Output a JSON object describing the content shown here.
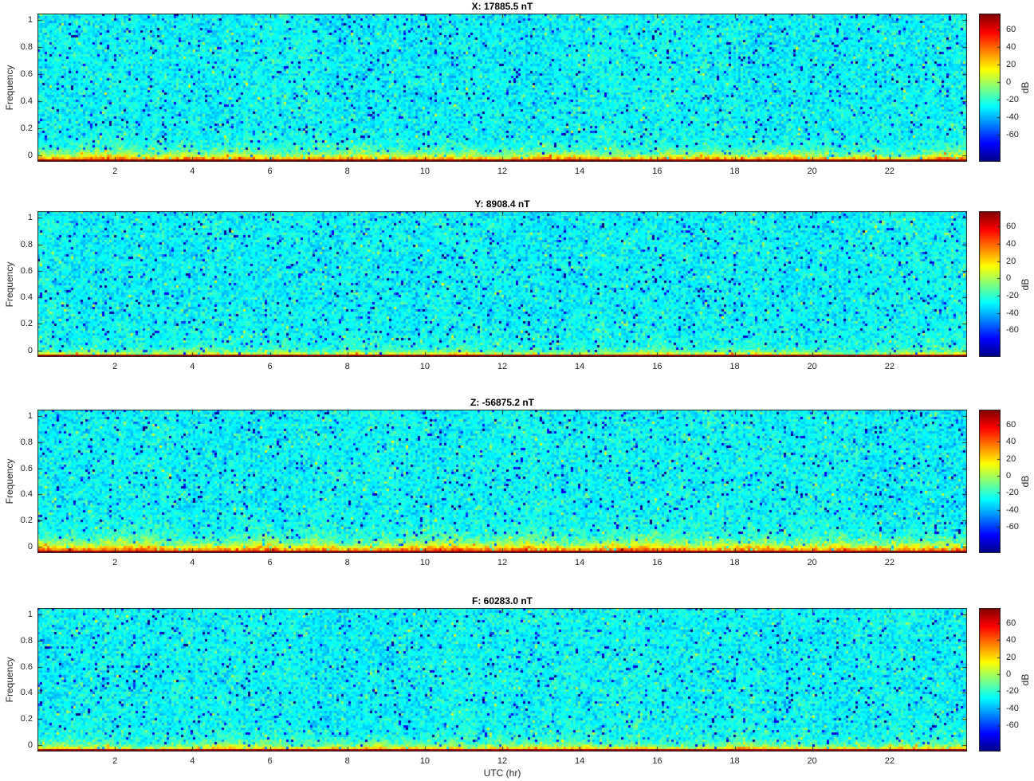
{
  "figure": {
    "panels": [
      {
        "component": "X",
        "title": "X: 17885.5 nT",
        "mean_field_nT": 17885.5
      },
      {
        "component": "Y",
        "title": "Y: 8908.4 nT",
        "mean_field_nT": 8908.4
      },
      {
        "component": "Z",
        "title": "Z: -56875.2 nT",
        "mean_field_nT": -56875.2
      },
      {
        "component": "F",
        "title": "F: 60283.0 nT",
        "mean_field_nT": 60283.0
      }
    ],
    "xlabel": "UTC (hr)",
    "ylabel": "Frequency",
    "x_ticks": [
      2,
      4,
      6,
      8,
      10,
      12,
      14,
      16,
      18,
      20,
      22
    ],
    "y_ticks": [
      0,
      0.2,
      0.4,
      0.6,
      0.8,
      1
    ],
    "colorbar": {
      "label": "dB",
      "ticks": [
        60,
        40,
        20,
        0,
        -20,
        -40,
        -60
      ],
      "colormap": "jet"
    }
  },
  "chart_data": {
    "type": "heatmap",
    "subtype": "spectrogram",
    "layout": "4 stacked panels sharing x-axis, each with its own jet colorbar",
    "panels": [
      {
        "title": "X: 17885.5 nT",
        "component": "X",
        "mean_field_nT": 17885.5,
        "low_freq_band": "moderate; yellow-orange band below ~0.06 frequency, dark-red ridge at 0"
      },
      {
        "title": "Y: 8908.4 nT",
        "component": "Y",
        "mean_field_nT": 8908.4,
        "low_freq_band": "thin; mostly the dark-red ridge at 0 with sparse yellow patches"
      },
      {
        "title": "Z: -56875.2 nT",
        "component": "Z",
        "mean_field_nT": -56875.2,
        "low_freq_band": "thickest; strong yellow-orange band below ~0.08 frequency"
      },
      {
        "title": "F: 60283.0 nT",
        "component": "F",
        "mean_field_nT": 60283.0,
        "low_freq_band": "thin; narrow yellow fringe over the dark-red ridge at 0"
      }
    ],
    "xlabel": "UTC (hr)",
    "x_range": [
      0,
      24
    ],
    "x_ticks": [
      2,
      4,
      6,
      8,
      10,
      12,
      14,
      16,
      18,
      20,
      22
    ],
    "ylabel": "Frequency",
    "y_range": [
      0,
      1.05
    ],
    "y_ticks": [
      0,
      0.2,
      0.4,
      0.6,
      0.8,
      1
    ],
    "color_axis": {
      "label": "dB",
      "ticks": [
        60,
        40,
        20,
        0,
        -20,
        -40,
        -60
      ],
      "approx_range": [
        -91,
        78
      ],
      "colormap": "jet"
    },
    "content_summary": {
      "background_power_db": -28,
      "background_noise_std_db": 8,
      "speckle_lows_db": -60,
      "band_peak_db": 72,
      "description": "Broadband cyan noise floor (~-30 to -15 dB) with blue speckles across all frequencies and times; sharp high-power (+40 to +75 dB) band confined to lowest frequencies in every panel.",
      "grid": false,
      "legend": "colorbar right of each panel"
    }
  }
}
